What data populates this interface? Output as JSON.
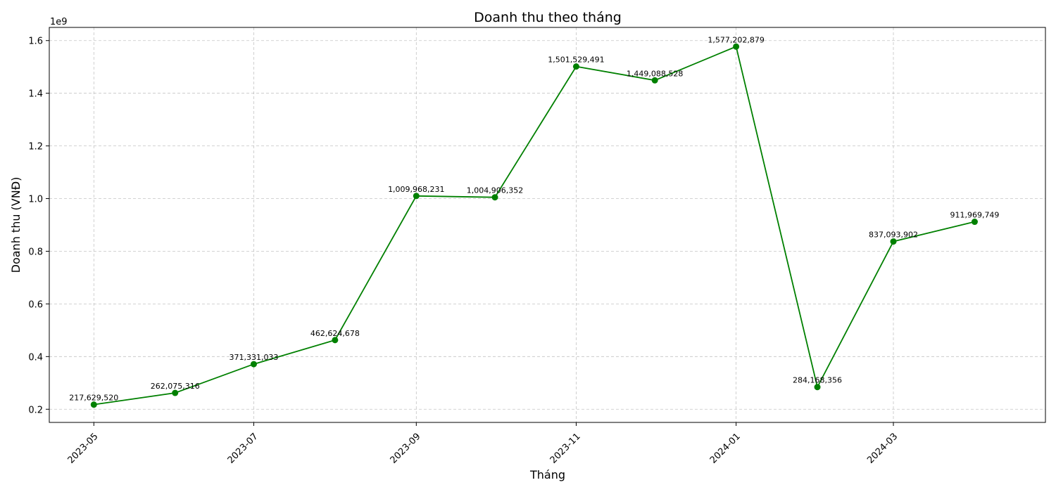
{
  "chart_data": {
    "type": "line",
    "title": "Doanh thu theo tháng",
    "xlabel": "Tháng",
    "ylabel": "Doanh thu (VNĐ)",
    "y_offset_label": "1e9",
    "y_scale": 1000000000,
    "ylim": [
      0.15,
      1.65
    ],
    "yticks": [
      0.2,
      0.4,
      0.6,
      0.8,
      1.0,
      1.2,
      1.4,
      1.6
    ],
    "ytick_labels": [
      "0.2",
      "0.4",
      "0.6",
      "0.8",
      "1.0",
      "1.2",
      "1.4",
      "1.6"
    ],
    "xlim": [
      "2023-04-14",
      "2024-04-28"
    ],
    "xticks": [
      "2023-05-01",
      "2023-07-01",
      "2023-09-01",
      "2023-11-01",
      "2024-01-01",
      "2024-03-01"
    ],
    "xtick_labels": [
      "2023-05",
      "2023-07",
      "2023-09",
      "2023-11",
      "2024-01",
      "2024-03"
    ],
    "grid": true,
    "color": "#008000",
    "series": [
      {
        "points": [
          {
            "x": "2023-05-01",
            "y": 217629520,
            "label": "217,629,520"
          },
          {
            "x": "2023-06-01",
            "y": 262075316,
            "label": "262,075,316"
          },
          {
            "x": "2023-07-01",
            "y": 371331033,
            "label": "371,331,033"
          },
          {
            "x": "2023-08-01",
            "y": 462624678,
            "label": "462,624,678"
          },
          {
            "x": "2023-09-01",
            "y": 1009968231,
            "label": "1,009,968,231"
          },
          {
            "x": "2023-10-01",
            "y": 1004906352,
            "label": "1,004,906,352"
          },
          {
            "x": "2023-11-01",
            "y": 1501529491,
            "label": "1,501,529,491"
          },
          {
            "x": "2023-12-01",
            "y": 1449088528,
            "label": "1,449,088,528"
          },
          {
            "x": "2024-01-01",
            "y": 1577202879,
            "label": "1,577,202,879"
          },
          {
            "x": "2024-02-01",
            "y": 284168356,
            "label": "284,168,356"
          },
          {
            "x": "2024-03-01",
            "y": 837093902,
            "label": "837,093,902"
          },
          {
            "x": "2024-04-01",
            "y": 911969749,
            "label": "911,969,749"
          }
        ]
      }
    ]
  }
}
